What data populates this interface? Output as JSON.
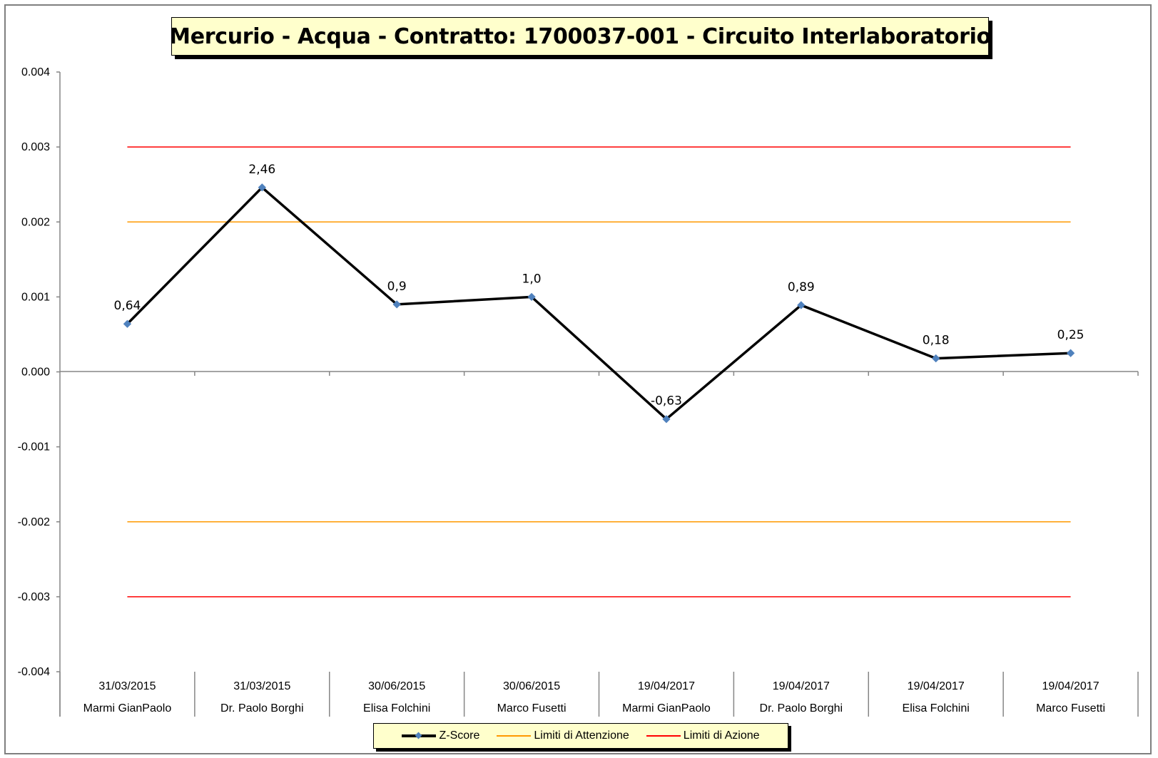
{
  "chart_data": {
    "type": "line",
    "title": "Mercurio - Acqua - Contratto: 1700037-001 - Circuito Interlaboratorio",
    "categories": [
      {
        "date": "31/03/2015",
        "name": "Marmi GianPaolo"
      },
      {
        "date": "31/03/2015",
        "name": "Dr. Paolo Borghi"
      },
      {
        "date": "30/06/2015",
        "name": "Elisa Folchini"
      },
      {
        "date": "30/06/2015",
        "name": "Marco Fusetti"
      },
      {
        "date": "19/04/2017",
        "name": "Marmi GianPaolo"
      },
      {
        "date": "19/04/2017",
        "name": "Dr. Paolo Borghi"
      },
      {
        "date": "19/04/2017",
        "name": "Elisa Folchini"
      },
      {
        "date": "19/04/2017",
        "name": "Marco Fusetti"
      }
    ],
    "ylim": [
      -0.004,
      0.004
    ],
    "yticks": [
      "0.004",
      "0.003",
      "0.002",
      "0.001",
      "0.000",
      "-0.001",
      "-0.002",
      "-0.003",
      "-0.004"
    ],
    "series": [
      {
        "name": "Z-Score",
        "color": "#000000",
        "marker_color": "#4f81bd",
        "values": [
          0.00064,
          0.00246,
          0.0009,
          0.001,
          -0.00063,
          0.00089,
          0.00018,
          0.00025
        ],
        "labels": [
          "0,64",
          "2,46",
          "0,9",
          "1,0",
          "-0,63",
          "0,89",
          "0,18",
          "0,25"
        ]
      },
      {
        "name": "Limiti di Attenzione",
        "color": "#ff9900",
        "levels": [
          0.002,
          -0.002
        ]
      },
      {
        "name": "Limiti di Azione",
        "color": "#ff0000",
        "levels": [
          0.003,
          -0.003
        ]
      }
    ],
    "legend_position": "bottom",
    "grid": false
  }
}
